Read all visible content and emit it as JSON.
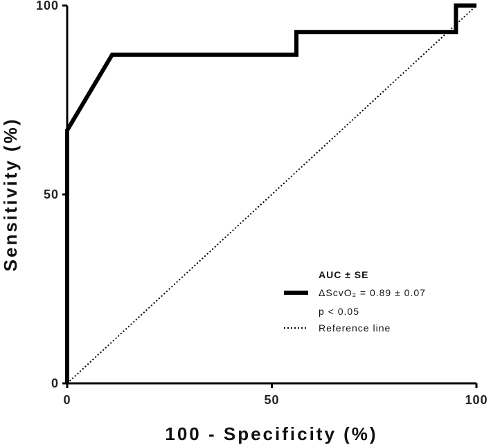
{
  "colors": {
    "background": "#ffffff",
    "axis": "#000000",
    "roc": "#000000",
    "reference": "#000000"
  },
  "chart_data": {
    "type": "line",
    "title": "",
    "xlabel": "100 - Specificity (%)",
    "ylabel": "Sensitivity (%)",
    "xlim": [
      0,
      100
    ],
    "ylim": [
      0,
      100
    ],
    "x_ticks": [
      0,
      50,
      100
    ],
    "y_ticks": [
      0,
      50,
      100
    ],
    "x_tick_labels": [
      "0",
      "50",
      "100"
    ],
    "y_tick_labels": [
      "0",
      "50",
      "100"
    ],
    "grid": false,
    "legend_position": "bottom-right",
    "legend_title": "AUC ± SE",
    "series": [
      {
        "name": "ΔScvO₂ = 0.89 ± 0.07",
        "style": "solid",
        "x": [
          0,
          0,
          11,
          56,
          56,
          95,
          95,
          100
        ],
        "y": [
          0,
          67,
          87,
          87,
          93,
          93,
          100,
          100
        ]
      },
      {
        "name": "Reference line",
        "style": "dotted",
        "x": [
          0,
          100
        ],
        "y": [
          0,
          100
        ]
      }
    ],
    "annotations": [
      "p < 0.05"
    ]
  }
}
